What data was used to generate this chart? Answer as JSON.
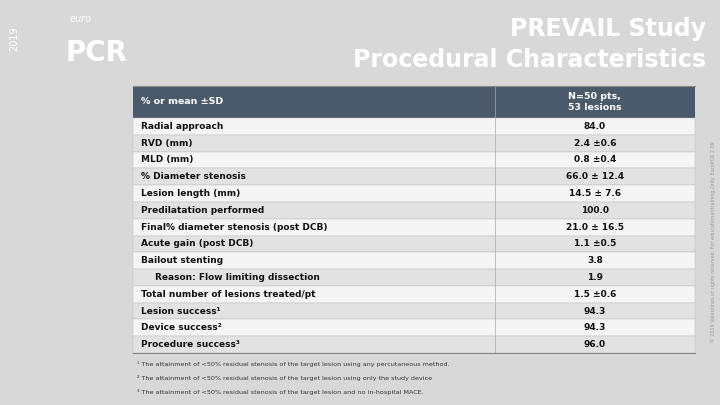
{
  "title_line1": "PREVAIL Study",
  "title_line2": "Procedural Characteristics",
  "title_color": "#ffffff",
  "header_bg": "#4a5a6a",
  "header_text_col": "#ffffff",
  "header_col1": "% or mean ±SD",
  "header_col2": "N=50 pts,\n53 lesions",
  "rows": [
    {
      "label": "Radial approach",
      "value": "84.0",
      "indent": false,
      "bg": "#f5f5f5"
    },
    {
      "label": "RVD (mm)",
      "value": "2.4 ±0.6",
      "indent": false,
      "bg": "#e2e2e2"
    },
    {
      "label": "MLD (mm)",
      "value": "0.8 ±0.4",
      "indent": false,
      "bg": "#f5f5f5"
    },
    {
      "label": "% Diameter stenosis",
      "value": "66.0 ± 12.4",
      "indent": false,
      "bg": "#e2e2e2"
    },
    {
      "label": "Lesion length (mm)",
      "value": "14.5 ± 7.6",
      "indent": false,
      "bg": "#f5f5f5"
    },
    {
      "label": "Predilatation performed",
      "value": "100.0",
      "indent": false,
      "bg": "#e2e2e2"
    },
    {
      "label": "Final% diameter stenosis (post DCB)",
      "value": "21.0 ± 16.5",
      "indent": false,
      "bg": "#f5f5f5"
    },
    {
      "label": "Acute gain (post DCB)",
      "value": "1.1 ±0.5",
      "indent": false,
      "bg": "#e2e2e2"
    },
    {
      "label": "Bailout stenting",
      "value": "3.8",
      "indent": false,
      "bg": "#f5f5f5"
    },
    {
      "label": "Reason: Flow limiting dissection",
      "value": "1.9",
      "indent": true,
      "bg": "#e2e2e2"
    },
    {
      "label": "Total number of lesions treated/pt",
      "value": "1.5 ±0.6",
      "indent": false,
      "bg": "#f5f5f5"
    },
    {
      "label": "Lesion success¹",
      "value": "94.3",
      "indent": false,
      "bg": "#e2e2e2"
    },
    {
      "label": "Device success²",
      "value": "94.3",
      "indent": false,
      "bg": "#f5f5f5"
    },
    {
      "label": "Procedure success³",
      "value": "96.0",
      "indent": false,
      "bg": "#e2e2e2"
    }
  ],
  "footnotes": [
    "¹ The attainment of <50% residual stenosis of the target lesion using any percutaneous method.",
    "² The attainment of <50% residual stenosis of the target lesion using only the study device",
    "³ The attainment of <50% residual stenosis of the target lesion and no in-hospital MACE."
  ],
  "top_bar_color": "#8b3fa0",
  "logo_dark_color": "#2a1a3a",
  "side_bar_color": "#8b3fa0",
  "bg_color": "#d8d8d8",
  "right_side_text": "© 2019 Valentines of rights reserved. For educational/training Only. EuroPCR 2.09",
  "watermark_color": "#999999"
}
